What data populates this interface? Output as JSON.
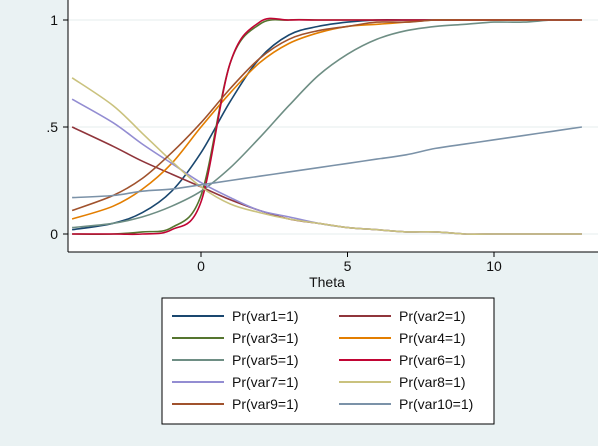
{
  "chart_data": {
    "type": "line",
    "title": "",
    "xlabel": "Theta",
    "ylabel": "",
    "xlim": [
      -4.5,
      13.0
    ],
    "ylim": [
      0,
      1
    ],
    "x_ticks": [
      0,
      5,
      10
    ],
    "x_tick_labels": [
      "0",
      "5",
      "10"
    ],
    "y_ticks": [
      0,
      0.5,
      1
    ],
    "y_tick_labels": [
      "0",
      ".5",
      "1"
    ],
    "grid": "horizontal",
    "legend_position": "bottom",
    "legend_columns": 2,
    "x": [
      -4.4,
      -3.0,
      -2.0,
      -1.0,
      0.0,
      1.0,
      2.0,
      3.0,
      4.0,
      5.0,
      6.0,
      7.0,
      8.0,
      9.0,
      10.0,
      11.0,
      12.0,
      13.0
    ],
    "series": [
      {
        "name": "Pr(var1=1)",
        "color": "#1a476f",
        "values": [
          0.02,
          0.05,
          0.1,
          0.2,
          0.38,
          0.62,
          0.82,
          0.93,
          0.97,
          0.99,
          1.0,
          1.0,
          1.0,
          1.0,
          1.0,
          1.0,
          1.0,
          1.0
        ]
      },
      {
        "name": "Pr(var2=1)",
        "color": "#90353b",
        "values": [
          0.5,
          0.41,
          0.34,
          0.28,
          0.22,
          0.16,
          0.11,
          0.07,
          0.05,
          0.03,
          0.02,
          0.01,
          0.01,
          0.0,
          0.0,
          0.0,
          0.0,
          0.0
        ]
      },
      {
        "name": "Pr(var3=1)",
        "color": "#55752f",
        "values": [
          0.0,
          0.0,
          0.01,
          0.03,
          0.18,
          0.8,
          0.98,
          1.0,
          1.0,
          1.0,
          1.0,
          1.0,
          1.0,
          1.0,
          1.0,
          1.0,
          1.0,
          1.0
        ]
      },
      {
        "name": "Pr(var4=1)",
        "color": "#e37e00",
        "values": [
          0.07,
          0.13,
          0.21,
          0.33,
          0.5,
          0.66,
          0.8,
          0.89,
          0.94,
          0.97,
          0.98,
          0.99,
          1.0,
          1.0,
          1.0,
          1.0,
          1.0,
          1.0
        ]
      },
      {
        "name": "Pr(var5=1)",
        "color": "#6e8e84",
        "values": [
          0.03,
          0.05,
          0.08,
          0.13,
          0.2,
          0.31,
          0.45,
          0.6,
          0.74,
          0.84,
          0.91,
          0.95,
          0.97,
          0.98,
          0.99,
          0.99,
          1.0,
          1.0
        ]
      },
      {
        "name": "Pr(var6=1)",
        "color": "#c10534",
        "values": [
          0.0,
          0.0,
          0.0,
          0.02,
          0.15,
          0.8,
          0.99,
          1.0,
          1.0,
          1.0,
          1.0,
          1.0,
          1.0,
          1.0,
          1.0,
          1.0,
          1.0,
          1.0
        ]
      },
      {
        "name": "Pr(var7=1)",
        "color": "#938dd2",
        "values": [
          0.63,
          0.52,
          0.42,
          0.33,
          0.24,
          0.17,
          0.11,
          0.08,
          0.05,
          0.03,
          0.02,
          0.01,
          0.01,
          0.0,
          0.0,
          0.0,
          0.0,
          0.0
        ]
      },
      {
        "name": "Pr(var8=1)",
        "color": "#cac27e",
        "values": [
          0.73,
          0.6,
          0.47,
          0.34,
          0.22,
          0.14,
          0.1,
          0.07,
          0.05,
          0.03,
          0.02,
          0.01,
          0.01,
          0.0,
          0.0,
          0.0,
          0.0,
          0.0
        ]
      },
      {
        "name": "Pr(var9=1)",
        "color": "#a0522d",
        "values": [
          0.11,
          0.18,
          0.26,
          0.38,
          0.52,
          0.68,
          0.82,
          0.91,
          0.95,
          0.97,
          0.99,
          0.99,
          1.0,
          1.0,
          1.0,
          1.0,
          1.0,
          1.0
        ]
      },
      {
        "name": "Pr(var10=1)",
        "color": "#7b92a8",
        "values": [
          0.17,
          0.18,
          0.2,
          0.21,
          0.23,
          0.25,
          0.27,
          0.29,
          0.31,
          0.33,
          0.35,
          0.37,
          0.4,
          0.42,
          0.44,
          0.46,
          0.48,
          0.5
        ]
      }
    ]
  }
}
